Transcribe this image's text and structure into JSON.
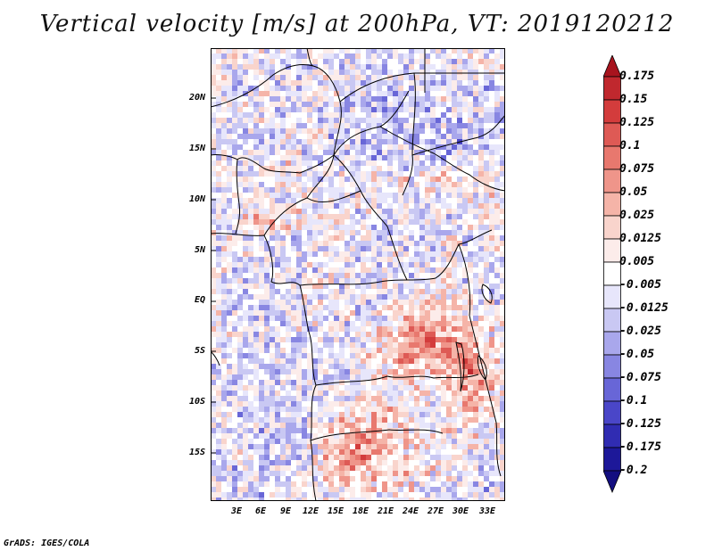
{
  "title": "Vertical velocity [m/s] at 200hPa, VT: 2019120212",
  "credit": "GrADS: IGES/COLA",
  "lat_labels": [
    "20N",
    "15N",
    "10N",
    "5N",
    "EQ",
    "5S",
    "10S",
    "15S"
  ],
  "lon_labels": [
    "3E",
    "6E",
    "9E",
    "12E",
    "15E",
    "18E",
    "21E",
    "24E",
    "27E",
    "30E",
    "33E"
  ],
  "colorbar": {
    "labels": [
      "0.175",
      "0.15",
      "0.125",
      "0.1",
      "0.075",
      "0.05",
      "0.025",
      "0.0125",
      "0.005",
      "-0.005",
      "-0.0125",
      "-0.025",
      "-0.05",
      "-0.075",
      "-0.1",
      "-0.125",
      "-0.175",
      "-0.2"
    ],
    "colors": [
      "#a8141e",
      "#c0282e",
      "#d33c3c",
      "#de5a55",
      "#e8786e",
      "#ef958a",
      "#f5b4a8",
      "#f9d4cc",
      "#fcecea",
      "#ffffff",
      "#e7e6fb",
      "#c9c8f3",
      "#a9a7ec",
      "#8886e2",
      "#6866d7",
      "#4a46c8",
      "#302cb2",
      "#1d1899",
      "#130e80"
    ]
  }
}
